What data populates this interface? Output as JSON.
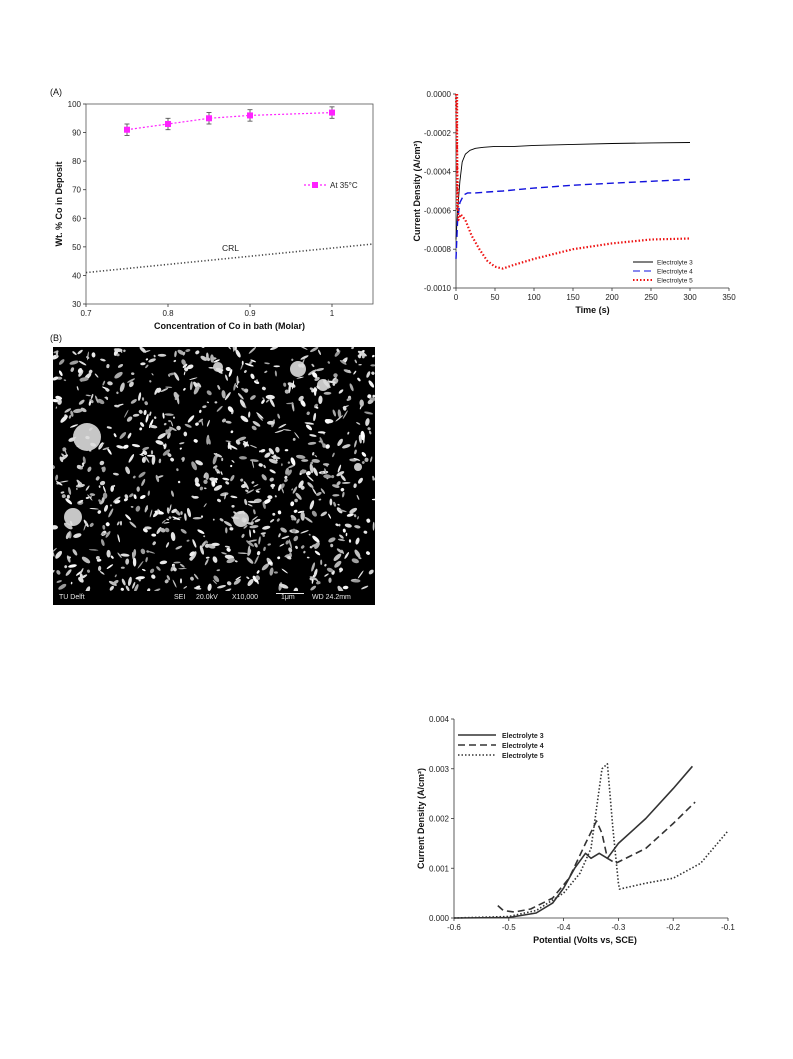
{
  "panel_labels": {
    "a": "(A)",
    "b": "(B)"
  },
  "chart_data": [
    {
      "id": "composition",
      "type": "scatter",
      "title": "",
      "xlabel": "Concentration of Co in bath  (Molar)",
      "ylabel": "Wt. % Co in Deposit",
      "xlim": [
        0.7,
        1.05
      ],
      "ylim": [
        30,
        100
      ],
      "x_ticks": [
        "0.7",
        "0.8",
        "0.9",
        "1"
      ],
      "y_ticks": [
        "30",
        "40",
        "50",
        "60",
        "70",
        "80",
        "90",
        "100"
      ],
      "grid": false,
      "legend_position": "right",
      "series": [
        {
          "name": "At 35°C",
          "color": "#ff22ff",
          "style": "dotted-with-square-markers",
          "x": [
            0.75,
            0.8,
            0.85,
            0.9,
            1.0
          ],
          "y": [
            91,
            93,
            95,
            96,
            97
          ],
          "error": [
            2,
            2,
            2,
            2,
            2
          ]
        }
      ],
      "reference_line": {
        "label": "CRL",
        "color": "#444444",
        "x": [
          0.7,
          1.05
        ],
        "y": [
          41,
          51
        ]
      }
    },
    {
      "id": "transients",
      "type": "line",
      "title": "",
      "xlabel": "Time (s)",
      "ylabel": "Current Density (A/cm²)",
      "xlim": [
        0,
        350
      ],
      "ylim": [
        -0.001,
        0
      ],
      "x_ticks": [
        "0",
        "50",
        "100",
        "150",
        "200",
        "250",
        "300",
        "350"
      ],
      "y_ticks": [
        "0.0000",
        "-0.0002",
        "-0.0004",
        "-0.0006",
        "-0.0008",
        "-0.0010"
      ],
      "grid": false,
      "legend_position": "bottom-right",
      "series": [
        {
          "name": "Electrolyte 3",
          "color": "#000000",
          "style": "solid",
          "x": [
            0,
            2,
            5,
            8,
            12,
            18,
            25,
            35,
            50,
            75,
            100,
            150,
            200,
            250,
            300
          ],
          "y": [
            -0.00075,
            -0.0006,
            -0.00045,
            -0.00035,
            -0.00031,
            -0.00029,
            -0.00028,
            -0.000275,
            -0.00027,
            -0.00027,
            -0.000265,
            -0.00026,
            -0.000255,
            -0.000252,
            -0.00025
          ]
        },
        {
          "name": "Electrolyte 4",
          "color": "#1111dd",
          "style": "dashed",
          "x": [
            0,
            2,
            5,
            10,
            15,
            25,
            40,
            60,
            100,
            150,
            200,
            250,
            300
          ],
          "y": [
            -0.00085,
            -0.00065,
            -0.00056,
            -0.00052,
            -0.00051,
            -0.00051,
            -0.000505,
            -0.0005,
            -0.000485,
            -0.00047,
            -0.00046,
            -0.00045,
            -0.00044
          ]
        },
        {
          "name": "Electrolyte 5",
          "color": "#ee1111",
          "style": "dotted",
          "x": [
            0,
            3,
            6,
            12,
            20,
            30,
            40,
            50,
            60,
            75,
            100,
            150,
            200,
            250,
            300
          ],
          "y": [
            0,
            -0.00065,
            -0.00062,
            -0.00065,
            -0.00073,
            -0.0008,
            -0.00086,
            -0.00089,
            -0.0009,
            -0.00088,
            -0.00085,
            -0.0008,
            -0.00077,
            -0.00075,
            -0.000745
          ]
        }
      ]
    },
    {
      "id": "polarization",
      "type": "line",
      "title": "",
      "xlabel": "Potential (Volts vs, SCE)",
      "ylabel": "Current Density (A/cm²)",
      "xlim": [
        -0.6,
        -0.1
      ],
      "ylim": [
        0,
        0.004
      ],
      "x_ticks": [
        "-0.6",
        "-0.5",
        "-0.4",
        "-0.3",
        "-0.2",
        "-0.1"
      ],
      "y_ticks": [
        "0.000",
        "0.001",
        "0.002",
        "0.003",
        "0.004"
      ],
      "grid": false,
      "legend_position": "top-left",
      "series": [
        {
          "name": "Electrolyte 3",
          "color": "#333333",
          "style": "solid",
          "x": [
            -0.6,
            -0.5,
            -0.45,
            -0.42,
            -0.4,
            -0.38,
            -0.36,
            -0.35,
            -0.335,
            -0.32,
            -0.3,
            -0.25,
            -0.2,
            -0.165
          ],
          "y": [
            0.0,
            1e-05,
            0.0001,
            0.0003,
            0.0006,
            0.001,
            0.0013,
            0.0012,
            0.0013,
            0.0012,
            0.0015,
            0.002,
            0.0026,
            0.00305
          ]
        },
        {
          "name": "Electrolyte 4",
          "color": "#333333",
          "style": "dashed",
          "x": [
            -0.52,
            -0.51,
            -0.49,
            -0.46,
            -0.42,
            -0.39,
            -0.36,
            -0.34,
            -0.33,
            -0.32,
            -0.305,
            -0.25,
            -0.2,
            -0.16
          ],
          "y": [
            0.00025,
            0.00015,
            0.00012,
            0.00018,
            0.0004,
            0.0008,
            0.0015,
            0.00195,
            0.0017,
            0.0012,
            0.0011,
            0.0014,
            0.0019,
            0.00233
          ]
        },
        {
          "name": "Electrolyte 5",
          "color": "#333333",
          "style": "dotted",
          "x": [
            -0.6,
            -0.5,
            -0.45,
            -0.4,
            -0.37,
            -0.35,
            -0.34,
            -0.33,
            -0.32,
            -0.31,
            -0.3,
            -0.298,
            -0.25,
            -0.2,
            -0.15,
            -0.1
          ],
          "y": [
            0.0,
            3e-05,
            0.00015,
            0.0005,
            0.0009,
            0.0014,
            0.0022,
            0.003,
            0.0031,
            0.0018,
            0.0007,
            0.00058,
            0.0007,
            0.0008,
            0.0011,
            0.00175
          ]
        }
      ]
    }
  ],
  "sem": {
    "lab": "TU Delft",
    "mode": "SEI",
    "voltage": "20.0kV",
    "magnification": "X10,000",
    "scale": "1μm",
    "working_distance": "WD 24.2mm"
  }
}
